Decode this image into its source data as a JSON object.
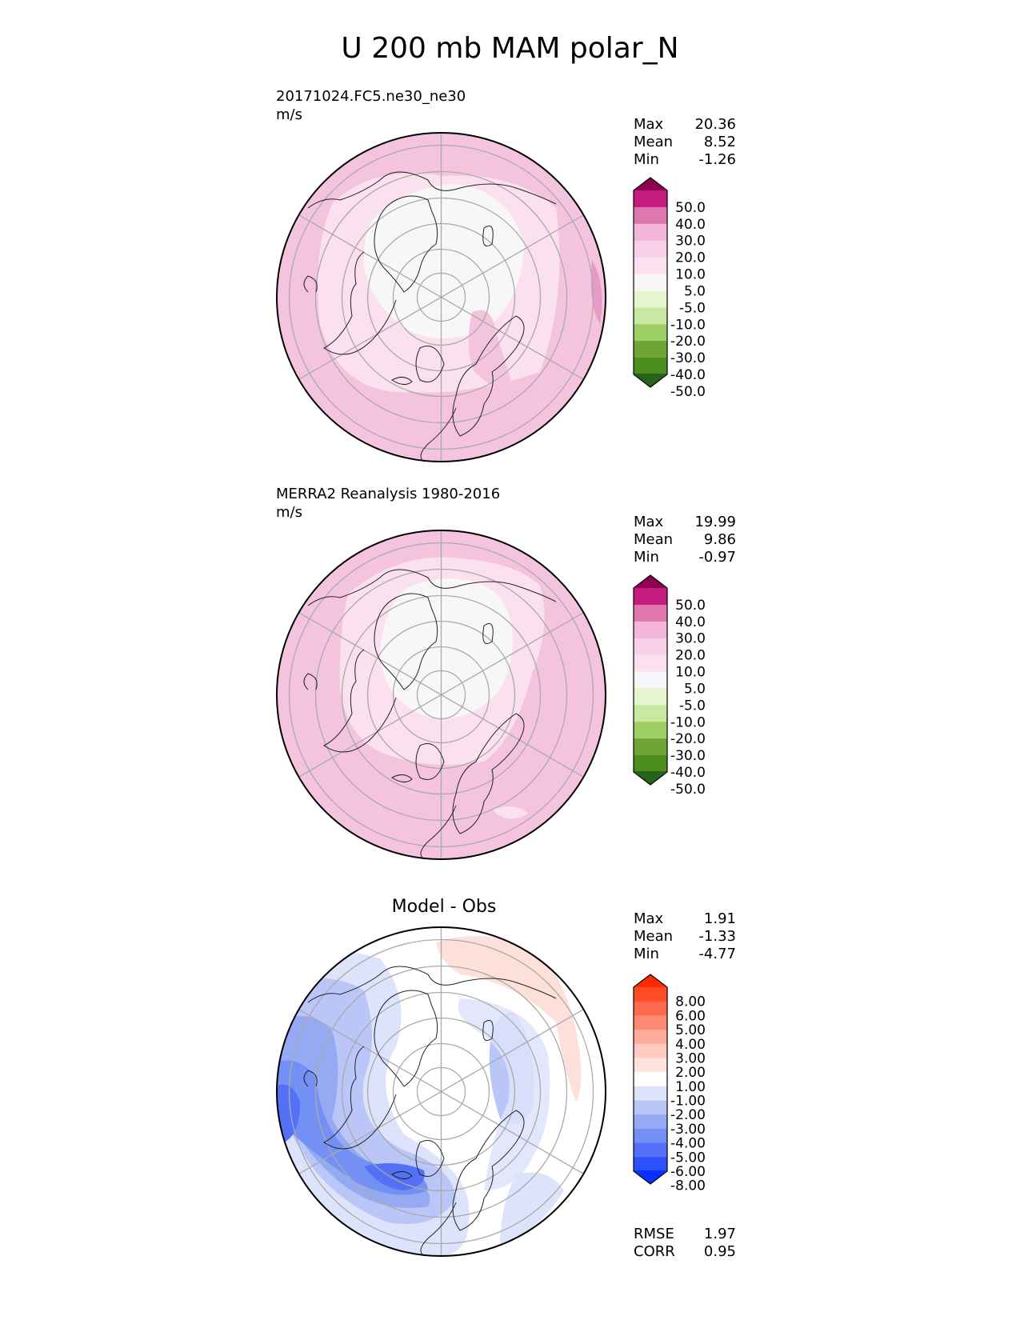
{
  "figure_title": "U 200 mb MAM polar_N",
  "panels": [
    {
      "id": "model",
      "case_name": "20171024.FC5.ne30_ne30",
      "units": "m/s",
      "stats": [
        {
          "label": "Max",
          "value": "20.36"
        },
        {
          "label": "Mean",
          "value": "8.52"
        },
        {
          "label": "Min",
          "value": "-1.26"
        }
      ]
    },
    {
      "id": "obs",
      "case_name": "MERRA2 Reanalysis 1980-2016",
      "units": "m/s",
      "stats": [
        {
          "label": "Max",
          "value": "19.99"
        },
        {
          "label": "Mean",
          "value": "9.86"
        },
        {
          "label": "Min",
          "value": "-0.97"
        }
      ]
    },
    {
      "id": "diff",
      "title": "Model - Obs",
      "stats": [
        {
          "label": "Max",
          "value": "1.91"
        },
        {
          "label": "Mean",
          "value": "-1.33"
        },
        {
          "label": "Min",
          "value": "-4.77"
        }
      ],
      "metrics": [
        {
          "label": "RMSE",
          "value": "1.97"
        },
        {
          "label": "CORR",
          "value": "0.95"
        }
      ]
    }
  ],
  "chart_data": [
    {
      "type": "heatmap",
      "projection": "north polar stereographic",
      "title": "20171024.FC5.ne30_ne30",
      "units": "m/s",
      "colorbar": {
        "ticks": [
          "50.0",
          "40.0",
          "30.0",
          "20.0",
          "10.0",
          "5.0",
          "-5.0",
          "-10.0",
          "-20.0",
          "-30.0",
          "-40.0",
          "-50.0"
        ],
        "colors": [
          "#8e0152",
          "#c51b7d",
          "#de77ae",
          "#f1b6da",
          "#f7d0e6",
          "#fde0ef",
          "#f7f7f7",
          "#e6f5d0",
          "#c7e9a2",
          "#9ecf64",
          "#6da636",
          "#4d8d1f",
          "#276419"
        ],
        "extend": "both"
      }
    },
    {
      "type": "heatmap",
      "projection": "north polar stereographic",
      "title": "MERRA2 Reanalysis 1980-2016",
      "units": "m/s",
      "colorbar": {
        "ticks": [
          "50.0",
          "40.0",
          "30.0",
          "20.0",
          "10.0",
          "5.0",
          "-5.0",
          "-10.0",
          "-20.0",
          "-30.0",
          "-40.0",
          "-50.0"
        ],
        "colors": [
          "#8e0152",
          "#c51b7d",
          "#de77ae",
          "#f1b6da",
          "#f7d0e6",
          "#fde0ef",
          "#f7f7f7",
          "#e6f5d0",
          "#c7e9a2",
          "#9ecf64",
          "#6da636",
          "#4d8d1f",
          "#276419"
        ],
        "extend": "both"
      }
    },
    {
      "type": "heatmap",
      "projection": "north polar stereographic",
      "title": "Model - Obs",
      "colorbar": {
        "ticks": [
          "8.00",
          "6.00",
          "5.00",
          "4.00",
          "3.00",
          "2.00",
          "1.00",
          "-1.00",
          "-2.00",
          "-3.00",
          "-4.00",
          "-5.00",
          "-6.00",
          "-8.00"
        ],
        "colors": [
          "#ff2a00",
          "#ff4b26",
          "#ff6a4d",
          "#ff8a73",
          "#ffab99",
          "#ffcabf",
          "#ffe3dc",
          "#ffffff",
          "#dde3fb",
          "#b9c6f7",
          "#96a9f3",
          "#7490f5",
          "#5370f7",
          "#2e50fa",
          "#0a30ff"
        ],
        "extend": "both"
      }
    }
  ]
}
